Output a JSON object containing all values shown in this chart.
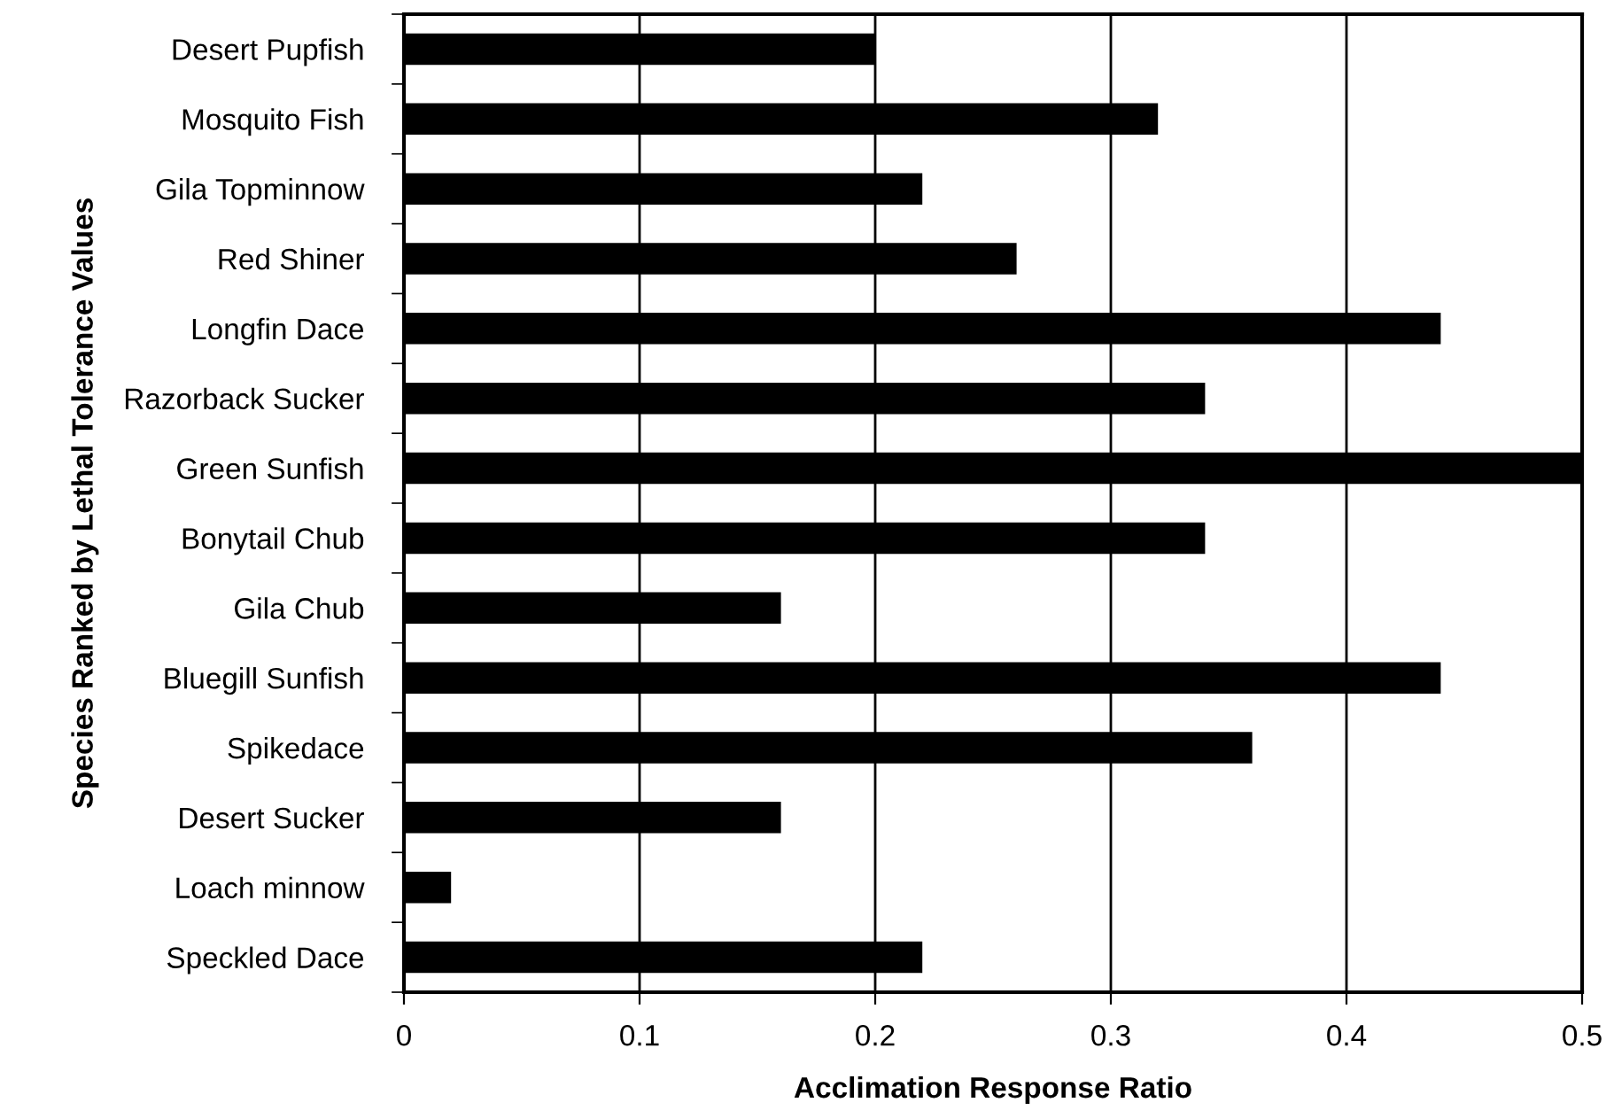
{
  "chart_data": {
    "type": "bar",
    "orientation": "horizontal",
    "xlabel": "Acclimation Response Ratio",
    "ylabel": "Species Ranked by Lethal Tolerance Values",
    "categories": [
      "Desert Pupfish",
      "Mosquito Fish",
      "Gila Topminnow",
      "Red Shiner",
      "Longfin Dace",
      "Razorback Sucker",
      "Green Sunfish",
      "Bonytail Chub",
      "Gila Chub",
      "Bluegill Sunfish",
      "Spikedace",
      "Desert Sucker",
      "Loach minnow",
      "Speckled Dace"
    ],
    "values": [
      0.2,
      0.32,
      0.22,
      0.26,
      0.44,
      0.34,
      0.5,
      0.34,
      0.16,
      0.44,
      0.36,
      0.16,
      0.02,
      0.22
    ],
    "color": "#000000",
    "xlim": [
      0,
      0.5
    ],
    "xticks": [
      0,
      0.1,
      0.2,
      0.3,
      0.4,
      0.5
    ],
    "grid": "x"
  }
}
